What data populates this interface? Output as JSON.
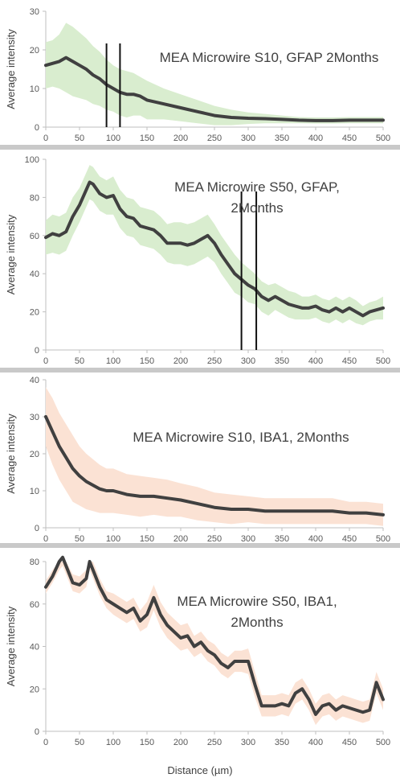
{
  "xlabel": "Distance (µm)",
  "chart_data": [
    {
      "type": "line",
      "title_lines": [
        "MEA Microwire S10, GFAP 2Months"
      ],
      "ylabel": "Average intensity",
      "xlim": [
        0,
        500
      ],
      "ylim": [
        0,
        30
      ],
      "yticks": [
        0,
        10,
        20,
        30
      ],
      "xticks": [
        0,
        50,
        100,
        150,
        200,
        250,
        300,
        350,
        400,
        450,
        500
      ],
      "band_color": "#d9edcf",
      "line_color": "#404040",
      "markers_x": [
        90,
        110
      ],
      "x": [
        0,
        10,
        20,
        30,
        40,
        50,
        60,
        70,
        80,
        90,
        100,
        110,
        120,
        130,
        140,
        150,
        175,
        200,
        225,
        250,
        275,
        300,
        325,
        350,
        375,
        400,
        425,
        450,
        475,
        500
      ],
      "y": [
        16,
        16.5,
        17,
        18,
        17,
        16,
        15,
        13.5,
        12.5,
        11,
        10,
        9,
        8.5,
        8.5,
        8,
        7,
        6,
        5,
        4,
        3,
        2.5,
        2.3,
        2.2,
        2,
        1.8,
        1.7,
        1.7,
        1.8,
        1.8,
        1.8
      ],
      "band": [
        6,
        6,
        7,
        9,
        9,
        8.5,
        8,
        7.5,
        7,
        6.5,
        6,
        6,
        6,
        5.5,
        5,
        5,
        4,
        3.5,
        3,
        2.5,
        2,
        1.5,
        1.2,
        1,
        0.8,
        0.8,
        0.8,
        0.8,
        0.8,
        0.8
      ]
    },
    {
      "type": "line",
      "title_lines": [
        "MEA Microwire S50, GFAP,",
        "2Months"
      ],
      "ylabel": "Average intensity",
      "xlim": [
        0,
        500
      ],
      "ylim": [
        0,
        100
      ],
      "yticks": [
        0,
        20,
        40,
        60,
        80,
        100
      ],
      "xticks": [
        0,
        50,
        100,
        150,
        200,
        250,
        300,
        350,
        400,
        450,
        500
      ],
      "band_color": "#d9edcf",
      "line_color": "#404040",
      "markers_x": [
        290,
        312
      ],
      "x": [
        0,
        10,
        20,
        30,
        40,
        50,
        60,
        65,
        70,
        80,
        90,
        100,
        110,
        120,
        130,
        140,
        150,
        160,
        170,
        180,
        190,
        200,
        210,
        220,
        230,
        240,
        250,
        260,
        270,
        280,
        290,
        300,
        310,
        320,
        330,
        340,
        350,
        360,
        370,
        380,
        390,
        400,
        410,
        420,
        430,
        440,
        450,
        460,
        470,
        480,
        490,
        500
      ],
      "y": [
        59,
        61,
        60,
        62,
        70,
        76,
        84,
        88,
        87,
        82,
        80,
        81,
        74,
        70,
        69,
        65,
        64,
        63,
        60,
        56,
        56,
        56,
        55,
        56,
        58,
        60,
        56,
        50,
        45,
        40,
        37,
        34,
        32,
        28,
        26,
        28,
        26,
        24,
        23,
        22,
        22,
        23,
        21,
        20,
        22,
        20,
        22,
        20,
        18,
        20,
        21,
        22
      ],
      "band": [
        9,
        10,
        10,
        10,
        10,
        9,
        9,
        9,
        9,
        9,
        9,
        10,
        10,
        10,
        10,
        10,
        10,
        10,
        10,
        10,
        11,
        11,
        11,
        11,
        11,
        11,
        10,
        10,
        10,
        10,
        9,
        9,
        8,
        8,
        8,
        7,
        7,
        7,
        7,
        6,
        6,
        6,
        6,
        6,
        6,
        6,
        6,
        6,
        5,
        5,
        5,
        6
      ]
    },
    {
      "type": "line",
      "title_lines": [
        "MEA Microwire S10, IBA1, 2Months"
      ],
      "ylabel": "Average intensity",
      "xlim": [
        0,
        500
      ],
      "ylim": [
        0,
        40
      ],
      "yticks": [
        0,
        10,
        20,
        30,
        40
      ],
      "xticks": [
        0,
        50,
        100,
        150,
        200,
        250,
        300,
        350,
        400,
        450,
        500
      ],
      "band_color": "#fbe2d4",
      "line_color": "#404040",
      "markers_x": [],
      "x": [
        0,
        10,
        20,
        30,
        40,
        50,
        60,
        70,
        80,
        90,
        100,
        120,
        140,
        160,
        180,
        200,
        225,
        250,
        275,
        300,
        325,
        350,
        375,
        400,
        425,
        450,
        475,
        500
      ],
      "y": [
        30,
        26,
        22,
        19,
        16,
        14,
        12.5,
        11.5,
        10.5,
        10,
        10,
        9,
        8.5,
        8.5,
        8,
        7.5,
        6.5,
        5.5,
        5,
        5,
        4.5,
        4.5,
        4.5,
        4.5,
        4.5,
        4,
        4,
        3.5
      ],
      "band": [
        8,
        9,
        9,
        9,
        9,
        8,
        7.5,
        7,
        6.5,
        6,
        6,
        5.5,
        5.5,
        5,
        5,
        4.5,
        4.5,
        4,
        4,
        3.5,
        3.5,
        3.5,
        3.5,
        3.5,
        3.5,
        3,
        3,
        3
      ]
    },
    {
      "type": "line",
      "title_lines": [
        "MEA Microwire S50, IBA1,",
        "2Months"
      ],
      "ylabel": "Average intensity",
      "xlim": [
        0,
        500
      ],
      "ylim": [
        0,
        80
      ],
      "yticks": [
        0,
        20,
        40,
        60,
        80
      ],
      "xticks": [
        0,
        50,
        100,
        150,
        200,
        250,
        300,
        350,
        400,
        450,
        500
      ],
      "band_color": "#fbe2d4",
      "line_color": "#404040",
      "markers_x": [],
      "x": [
        0,
        10,
        20,
        25,
        30,
        40,
        50,
        60,
        65,
        70,
        80,
        90,
        100,
        110,
        120,
        130,
        140,
        150,
        160,
        170,
        180,
        190,
        200,
        210,
        220,
        230,
        240,
        250,
        260,
        270,
        280,
        290,
        300,
        310,
        320,
        330,
        340,
        350,
        360,
        370,
        380,
        390,
        400,
        410,
        420,
        430,
        440,
        450,
        460,
        470,
        480,
        490,
        500
      ],
      "y": [
        68,
        73,
        80,
        82,
        78,
        70,
        69,
        72,
        80,
        76,
        68,
        62,
        60,
        58,
        56,
        58,
        52,
        55,
        63,
        55,
        50,
        47,
        44,
        45,
        40,
        42,
        38,
        36,
        32,
        30,
        33,
        33,
        33,
        22,
        12,
        12,
        12,
        13,
        12,
        18,
        20,
        15,
        8,
        12,
        13,
        10,
        12,
        11,
        10,
        9,
        10,
        23,
        15
      ],
      "band": [
        3,
        3,
        4,
        4,
        4,
        4,
        4,
        4,
        4,
        4,
        4,
        4,
        5,
        5,
        5,
        5,
        5,
        6,
        6,
        6,
        6,
        6,
        6,
        6,
        5,
        5,
        5,
        5,
        5,
        5,
        5,
        5,
        6,
        6,
        5,
        5,
        5,
        5,
        5,
        5,
        5,
        5,
        5,
        5,
        5,
        5,
        5,
        5,
        5,
        5,
        5,
        5,
        5
      ]
    }
  ]
}
